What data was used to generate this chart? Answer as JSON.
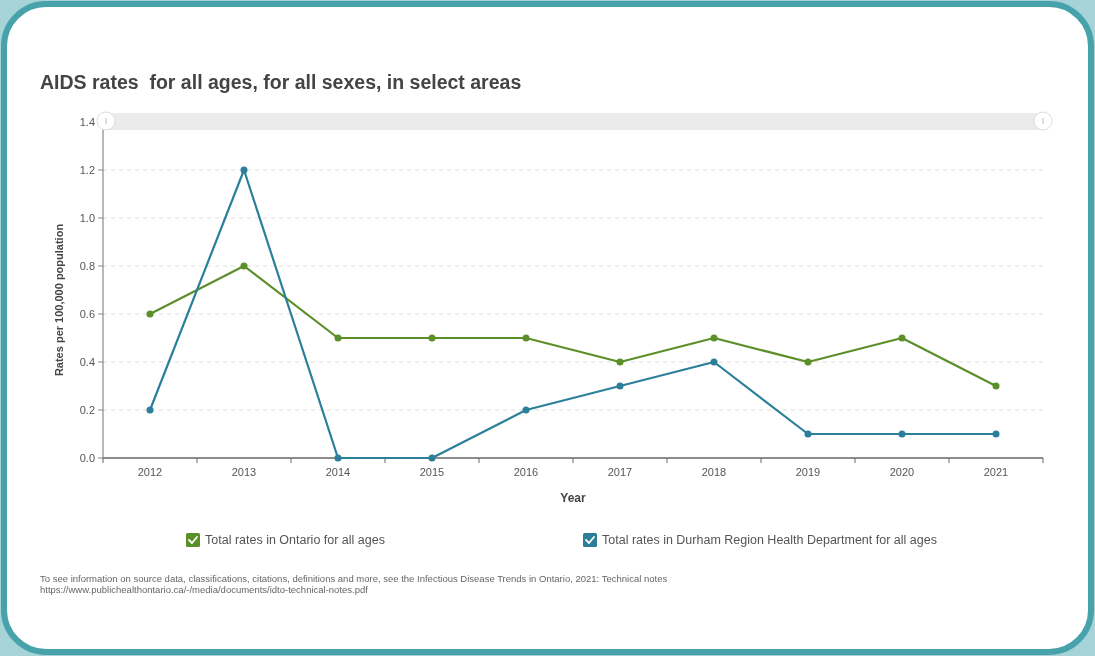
{
  "chart_data": {
    "type": "line",
    "title": "AIDS rates  for all ages, for all sexes, in select areas",
    "xlabel": "Year",
    "ylabel": "Rates per 100,000 population",
    "categories": [
      "2012",
      "2013",
      "2014",
      "2015",
      "2016",
      "2017",
      "2018",
      "2019",
      "2020",
      "2021"
    ],
    "series": [
      {
        "name": "Total rates in Ontario for all ages",
        "color": "#5b8f29",
        "values": [
          0.6,
          0.8,
          0.5,
          0.5,
          0.5,
          0.4,
          0.5,
          0.4,
          0.5,
          0.3
        ]
      },
      {
        "name": "Total rates in Durham Region Health Department for all ages",
        "color": "#2b7f9a",
        "values": [
          0.2,
          1.2,
          0,
          0,
          0.2,
          0.3,
          0.4,
          0.1,
          0.1,
          0.1
        ]
      }
    ],
    "ylim": [
      0,
      1.4
    ],
    "yticks": [
      {
        "value": 0,
        "label": "0.0"
      },
      0.2,
      0.4,
      0.6,
      0.8,
      {
        "value": 1,
        "label": "1.0"
      },
      1.2,
      1.4
    ],
    "grid": "y",
    "legend": "bottom",
    "marker": "circle",
    "line_style": "solid",
    "annotations": [
      "To see information on source data, classifications, citations, definitions and more, see the Infectious Disease Trends in Ontario, 2021: Technical notes",
      "https://www.publichealthontario.ca/-/media/documents/idto-technical-notes.pdf"
    ]
  }
}
